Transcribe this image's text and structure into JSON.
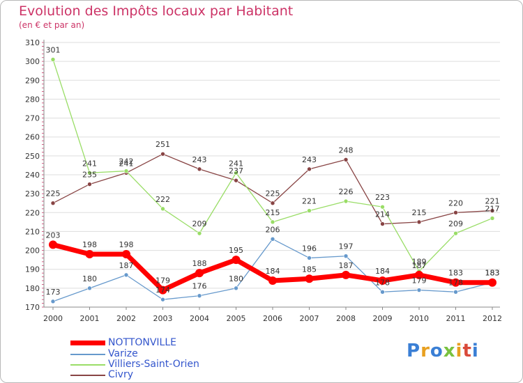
{
  "title": "Evolution des Impôts locaux par Habitant",
  "subtitle": "(en € et par an)",
  "logo": {
    "text": "Proxiti",
    "colors": [
      "#3a7fd5",
      "#e8a020",
      "#3a7fd5",
      "#79c23f",
      "#e8a020",
      "#d94a3a",
      "#3a7fd5"
    ]
  },
  "legend": [
    {
      "name": "NOTTONVILLE",
      "color": "#ff0000",
      "width": 6
    },
    {
      "name": "Varize",
      "color": "#6699cc",
      "width": 2
    },
    {
      "name": "Villiers-Saint-Orien",
      "color": "#99dd66",
      "width": 2
    },
    {
      "name": "Civry",
      "color": "#884444",
      "width": 2
    }
  ],
  "chart_data": {
    "type": "line",
    "x": [
      "2000",
      "2001",
      "2002",
      "2003",
      "2004",
      "2005",
      "2006",
      "2007",
      "2008",
      "2009",
      "2010",
      "2011",
      "2012"
    ],
    "ylim": [
      170,
      310
    ],
    "yticks": [
      170,
      180,
      190,
      200,
      210,
      220,
      230,
      240,
      250,
      260,
      270,
      280,
      290,
      300,
      310
    ],
    "grid": "horizontal",
    "legend_position": "bottom-left",
    "series": [
      {
        "name": "Civry",
        "color": "#884444",
        "values": [
          225,
          235,
          241,
          251,
          243,
          237,
          225,
          243,
          248,
          214,
          215,
          220,
          221
        ]
      },
      {
        "name": "Villiers-Saint-Orien",
        "color": "#99dd66",
        "values": [
          301,
          241,
          242,
          222,
          209,
          241,
          215,
          221,
          226,
          223,
          189,
          209,
          217
        ]
      },
      {
        "name": "Varize",
        "color": "#6699cc",
        "values": [
          173,
          180,
          187,
          174,
          176,
          180,
          206,
          196,
          197,
          178,
          179,
          178,
          183
        ]
      },
      {
        "name": "NOTTONVILLE",
        "color": "#ff0000",
        "values": [
          203,
          198,
          198,
          179,
          188,
          195,
          184,
          185,
          187,
          184,
          187,
          183,
          183
        ]
      }
    ]
  }
}
